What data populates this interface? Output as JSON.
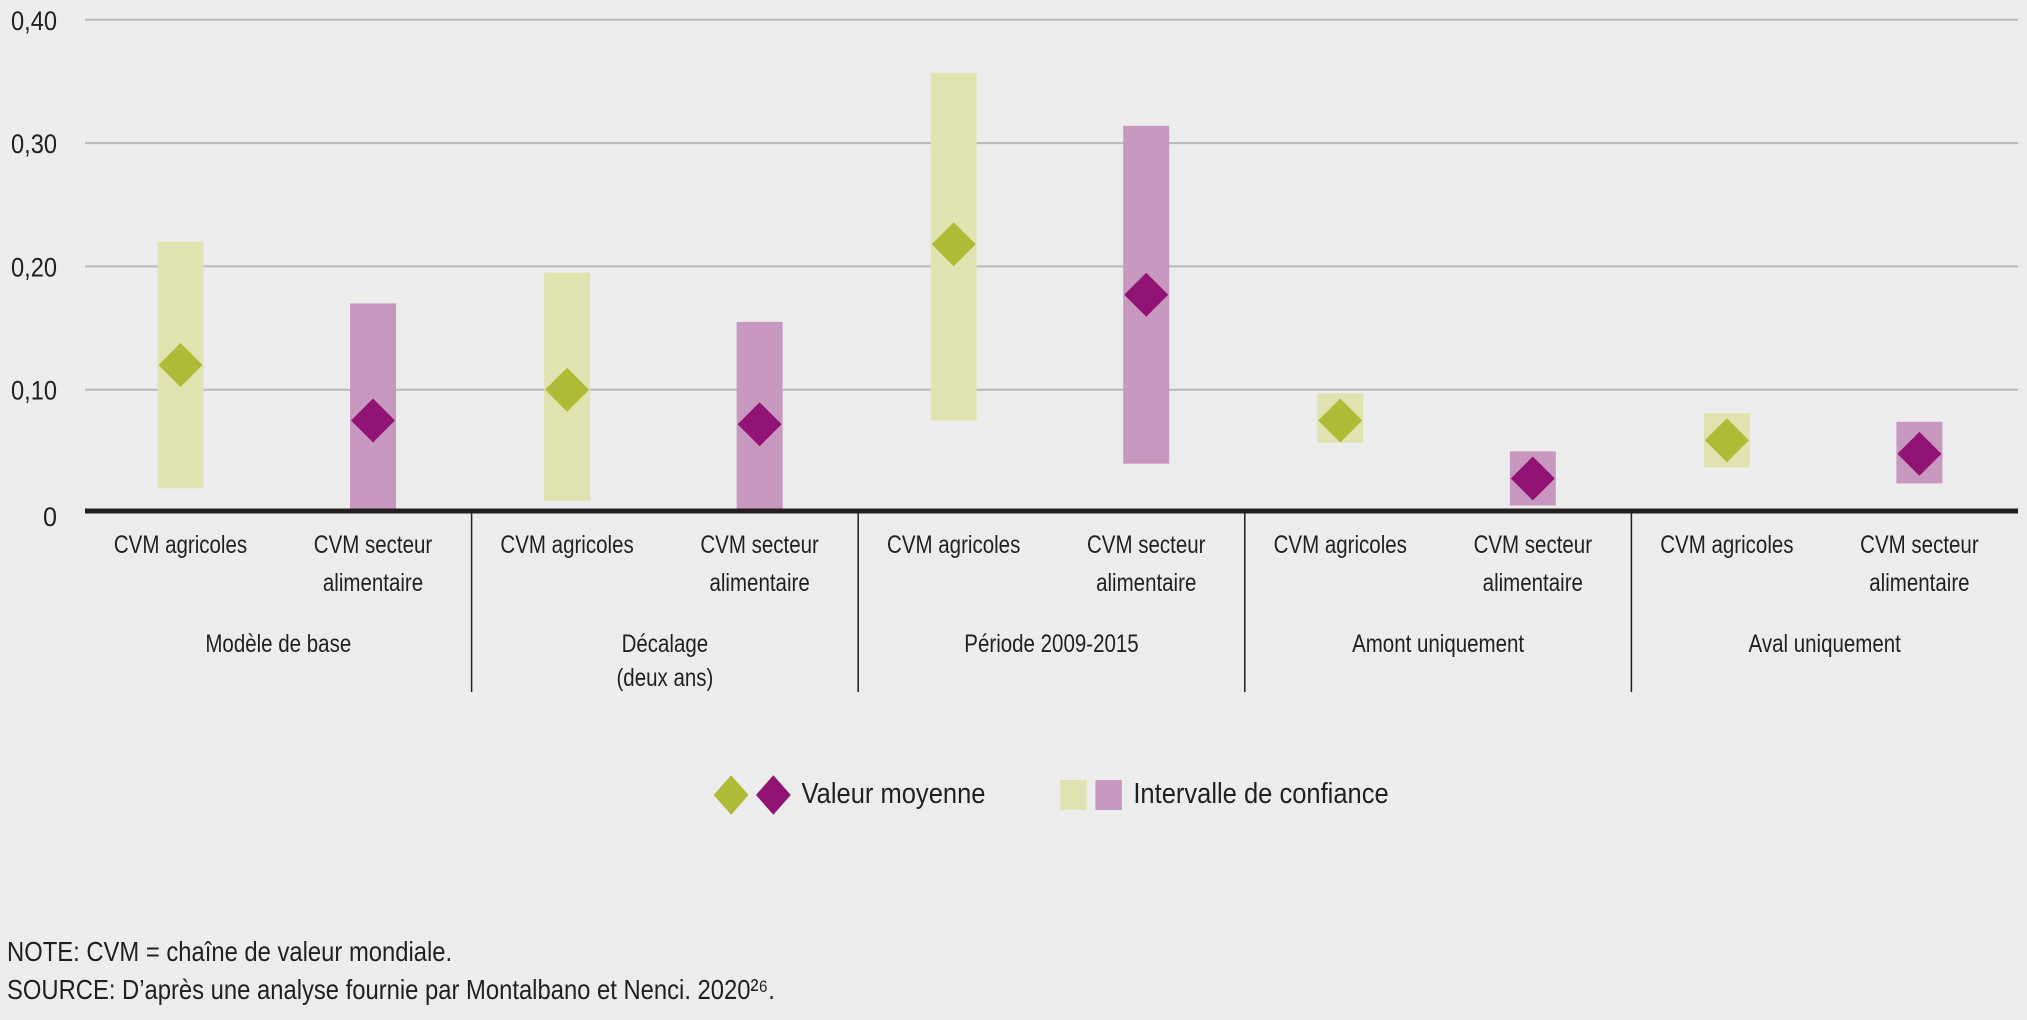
{
  "chart_data": {
    "type": "range-dot",
    "title": "",
    "xlabel": "",
    "ylabel": "",
    "ylim": [
      0,
      0.4
    ],
    "yticks": [
      0,
      0.1,
      0.2,
      0.3,
      0.4
    ],
    "ytick_labels": [
      "0",
      "0,10",
      "0,20",
      "0,30",
      "0,40"
    ],
    "grid": true,
    "legend_position": "bottom-center",
    "series": [
      {
        "name": "CVM agricoles",
        "mean_color": "#afba36",
        "interval_color": "#e0e3b0"
      },
      {
        "name": "CVM secteur alimentaire",
        "mean_color": "#911474",
        "interval_color": "#c897bf"
      }
    ],
    "groups": [
      {
        "label": [
          "Modèle de base"
        ],
        "items": [
          {
            "category": [
              "CVM agricoles"
            ],
            "series": 0,
            "mean": 0.12,
            "low": 0.02,
            "high": 0.22
          },
          {
            "category": [
              "CVM secteur",
              "alimentaire"
            ],
            "series": 1,
            "mean": 0.075,
            "low": 0.0,
            "high": 0.17
          }
        ]
      },
      {
        "label": [
          "Décalage",
          "(deux ans)"
        ],
        "items": [
          {
            "category": [
              "CVM agricoles"
            ],
            "series": 0,
            "mean": 0.1,
            "low": 0.01,
            "high": 0.195
          },
          {
            "category": [
              "CVM secteur",
              "alimentaire"
            ],
            "series": 1,
            "mean": 0.072,
            "low": 0.0,
            "high": 0.155
          }
        ]
      },
      {
        "label": [
          "Période 2009-2015"
        ],
        "items": [
          {
            "category": [
              "CVM agricoles"
            ],
            "series": 0,
            "mean": 0.218,
            "low": 0.075,
            "high": 0.357
          },
          {
            "category": [
              "CVM secteur",
              "alimentaire"
            ],
            "series": 1,
            "mean": 0.177,
            "low": 0.04,
            "high": 0.314
          }
        ]
      },
      {
        "label": [
          "Amont uniquement"
        ],
        "items": [
          {
            "category": [
              "CVM agricoles"
            ],
            "series": 0,
            "mean": 0.075,
            "low": 0.057,
            "high": 0.097
          },
          {
            "category": [
              "CVM secteur",
              "alimentaire"
            ],
            "series": 1,
            "mean": 0.028,
            "low": 0.006,
            "high": 0.05
          }
        ]
      },
      {
        "label": [
          "Aval uniquement"
        ],
        "items": [
          {
            "category": [
              "CVM agricoles"
            ],
            "series": 0,
            "mean": 0.059,
            "low": 0.037,
            "high": 0.081
          },
          {
            "category": [
              "CVM secteur",
              "alimentaire"
            ],
            "series": 1,
            "mean": 0.048,
            "low": 0.024,
            "high": 0.074
          }
        ]
      }
    ],
    "legend": {
      "mean_label": "Valeur moyenne",
      "interval_label": "Intervalle de confiance"
    }
  },
  "colors": {
    "background": "#ececec",
    "grid": "#b8b8b8",
    "axis": "#231f20",
    "text": "#231f20"
  },
  "notes": {
    "note": "NOTE: CVM = chaîne de valeur mondiale.",
    "source": "SOURCE: D’après une analyse fournie par Montalbano et Nenci. 2020²⁶."
  }
}
